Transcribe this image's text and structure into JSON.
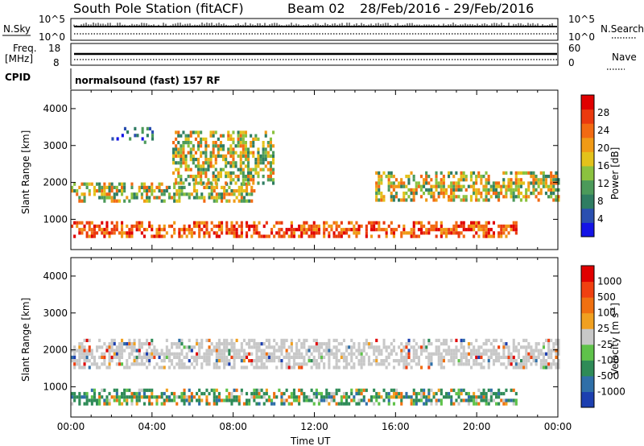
{
  "title": {
    "station": "South Pole Station (fitACF)",
    "beam": "Beam 02",
    "dates": "28/Feb/2016 - 29/Feb/2016"
  },
  "status_panels": {
    "nsky_label": "N.Sky",
    "nsearch_label": "N.Search",
    "noise_left_ticks": [
      "10^5",
      "10^0"
    ],
    "noise_right_ticks": [
      "10^5",
      "10^0"
    ],
    "freq_label": "Freq.",
    "freq_unit": "[MHz]",
    "freq_ticks": [
      "18",
      "8"
    ],
    "nave_label": "Nave",
    "nave_ticks": [
      "60",
      "0"
    ],
    "cpid_label": "CPID",
    "cpid_text": "normalsound (fast) 157 RF"
  },
  "chart_data": [
    {
      "type": "heatmap",
      "panel": "power",
      "ylabel": "Slant Range [km]",
      "xlabel": "",
      "ylim": [
        180,
        4500
      ],
      "yticks": [
        1000,
        2000,
        3000,
        4000
      ],
      "xlim_hours": [
        0,
        24
      ],
      "colorbar": {
        "label": "Power [dB]",
        "ticks": [
          "4",
          "8",
          "12",
          "16",
          "20",
          "24",
          "28"
        ],
        "colors": [
          "#1414e6",
          "#2a4fb0",
          "#2f7d62",
          "#4c9a5a",
          "#8bc23f",
          "#e3c21b",
          "#f09a16",
          "#f26a12",
          "#ea3a0f",
          "#e00000"
        ]
      },
      "echo_bands": [
        {
          "range_km": [
            550,
            950
          ],
          "hours": [
            0,
            22
          ],
          "level": "high"
        },
        {
          "range_km": [
            1500,
            2000
          ],
          "hours": [
            0,
            9
          ],
          "level": "medium"
        },
        {
          "range_km": [
            1500,
            2300
          ],
          "hours": [
            15,
            24
          ],
          "level": "medium"
        },
        {
          "range_km": [
            2000,
            3400
          ],
          "hours": [
            5,
            10
          ],
          "level": "medium"
        },
        {
          "range_km": [
            3100,
            3500
          ],
          "hours": [
            2,
            4
          ],
          "level": "low"
        }
      ]
    },
    {
      "type": "heatmap",
      "panel": "velocity",
      "ylabel": "Slant Range [km]",
      "xlabel": "Time UT",
      "ylim": [
        180,
        4500
      ],
      "yticks": [
        1000,
        2000,
        3000,
        4000
      ],
      "xticks": [
        "00:00",
        "04:00",
        "08:00",
        "12:00",
        "16:00",
        "20:00",
        "00:00"
      ],
      "colorbar": {
        "label": "Velocity [m s",
        "label_sup": "-1",
        "label_end": "]",
        "ticks": [
          "1000",
          "500",
          "100",
          "25",
          "-25",
          "-100",
          "-500",
          "-1000"
        ],
        "colors": [
          "#1c3fb0",
          "#2f6fa8",
          "#2e8b57",
          "#5fc24a",
          "#c8c8c8",
          "#f0a020",
          "#f07010",
          "#f04010",
          "#e00000"
        ]
      },
      "echo_bands": [
        {
          "range_km": [
            550,
            950
          ],
          "hours": [
            0,
            22
          ],
          "level": "low-velocity"
        },
        {
          "range_km": [
            1500,
            2300
          ],
          "hours": [
            0,
            24
          ],
          "level": "ground-scatter"
        }
      ]
    }
  ]
}
